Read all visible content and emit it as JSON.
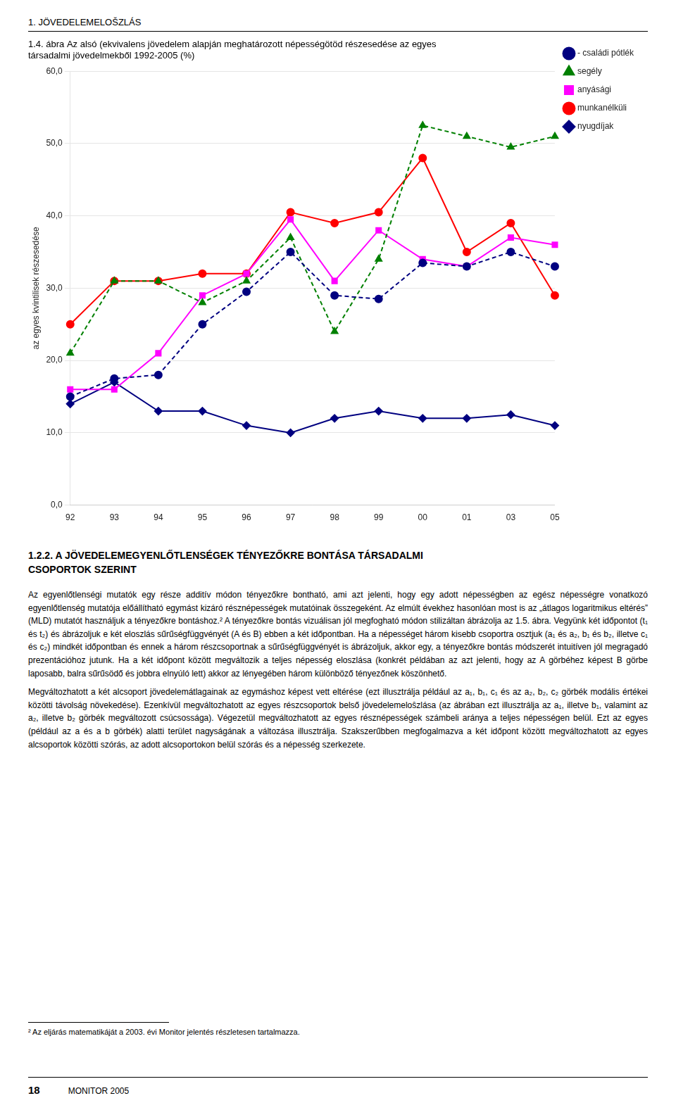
{
  "chart_data": {
    "type": "line",
    "title": [
      "1.4. ábra Az alsó (ekvivalens jövedelem alapján meghatározott népességötöd részesedése az egyes",
      "társadalmi jövedelmekből 1992-2005 (%)"
    ],
    "y_label": "az egyes kvintilisek részesedése",
    "categories": [
      "92",
      "93",
      "94",
      "95",
      "96",
      "97",
      "98",
      "99",
      "00",
      "01",
      "03",
      "05"
    ],
    "series": [
      {
        "name": "nyugdíjak",
        "color": "#000080",
        "marker": "diamond",
        "line_style": "solid",
        "values": [
          14.0,
          17.0,
          13.0,
          13.0,
          11.0,
          10.0,
          12.0,
          13.0,
          12.0,
          12.0,
          12.5,
          11.0
        ]
      },
      {
        "name": "munkanélküli",
        "color": "#FF0000",
        "marker": "circle",
        "line_style": "solid",
        "values": [
          25.0,
          31.0,
          31.0,
          32.0,
          32.0,
          40.5,
          39.0,
          40.5,
          48.0,
          35.0,
          39.0,
          29.0
        ]
      },
      {
        "name": "anyásági",
        "color": "#FF00FF",
        "marker": "square",
        "line_style": "solid",
        "values": [
          16.0,
          16.0,
          21.0,
          29.0,
          32.0,
          39.5,
          31.0,
          38.0,
          34.0,
          33.0,
          37.0,
          36.0
        ]
      },
      {
        "name": "segély",
        "color": "#008000",
        "marker": "triangle",
        "line_style": "dashed",
        "values": [
          21.0,
          31.0,
          31.0,
          28.0,
          31.0,
          37.0,
          24.0,
          34.0,
          52.5,
          51.0,
          49.5,
          51.0
        ]
      },
      {
        "name": "- családi pótlék",
        "color": "#000080",
        "marker": "circle",
        "line_style": "dashed",
        "values": [
          15.0,
          17.5,
          18.0,
          25.0,
          29.5,
          35.0,
          29.0,
          28.5,
          33.5,
          33.0,
          35.0,
          33.0
        ]
      }
    ],
    "ylim": [
      0.0,
      60.0
    ],
    "yticks": [
      {
        "value": 0.0,
        "label": "0,0"
      },
      {
        "value": 10.0,
        "label": "10,0"
      },
      {
        "value": 20.0,
        "label": "20,0"
      },
      {
        "value": 30.0,
        "label": "30,0"
      },
      {
        "value": 40.0,
        "label": "40,0"
      },
      {
        "value": 50.0,
        "label": "50,0"
      },
      {
        "value": 60.0,
        "label": "60,0"
      }
    ],
    "grid": "y",
    "legend": "upper right",
    "annotations": [
      "1. JÖVEDELEMELOŠZLÁS",
      "1.2.2. A JÖVEDELEMEGYENLŐTLENSÉGEK TÉNYEZŐKRE BONTÁSA TÁRSADALMI",
      "CSOPORTOK SZERINT",
      "Az egyenlőtlenségi mutatók egy része additív módon tényezőkre bontható, ami azt jelenti, hogy egy adott népességben az egész népességre vonatkozó egyenlőtlenség mutatója előállítható egymást kizáró résznépességek mutatóinak összegeként. Az elmúlt évekhez hasonlóan most is az „átlagos logaritmikus eltérés” (MLD) mutatót használjuk a tényezőkre bontáshoz.² A tényezőkre bontás vizuálisan jól megfogható módon stilizáltan ábrázolja az 1.5. ábra. Vegyünk két időpontot (t₁ és t₂) és ábrázoljuk e két eloszlás sűrűségfüggvényét (A és B) ebben a két időpontban. Ha a népességet három kisebb csoportra osztjuk (a₁ és a₂, b₁ és b₂, illetve c₁ és c₂) mindkét időpontban és ennek a három részcsoportnak a sűrűségfüggvényét is ábrázoljuk, akkor egy, a tényezőkre bontás módszerét intuitíven jól megragadó prezentációhoz jutunk. Ha a két időpont között megváltozik a teljes népesség eloszlása (konkrét példában az azt jelenti, hogy az A görbéhez képest B görbe laposabb, balra sűrűsödő és jobbra elnyúló lett) akkor az lényegében három különböző tényezőnek köszönhető.",
      "Megváltozhatott a két alcsoport jövedelemátlagainak az egymáshoz képest vett eltérése (ezt illusztrálja például az a₁, b₁, c₁ és az a₂, b₂, c₂ görbék modális értékei közötti távolság növekedése). Ezenkívül megváltozhatott az egyes részcsoportok belső jövedelemeloŝzlása (az ábrában ezt illusztrálja az a₁, illetve b₁, valamint az a₂, illetve b₂ görbék megváltozott csúcsossága). Végezetül megváltozhatott az egyes résznépességek számbeli aránya a teljes népességen belül. Ezt az egyes (például az a és a b görbék) alatti terület nagyságának a változása illusztrálja. Szakszerűbben megfogalmazva a két időpont között megváltozhatott az egyes alcsoportok közötti szórás, az adott alcsoportokon belül szórás és a népesség szerkezete.",
      "² Az eljárás matematikáját a 2003. évi Monitor jelentés részletesen tartalmazza.",
      "18",
      "MONITOR 2005"
    ]
  }
}
